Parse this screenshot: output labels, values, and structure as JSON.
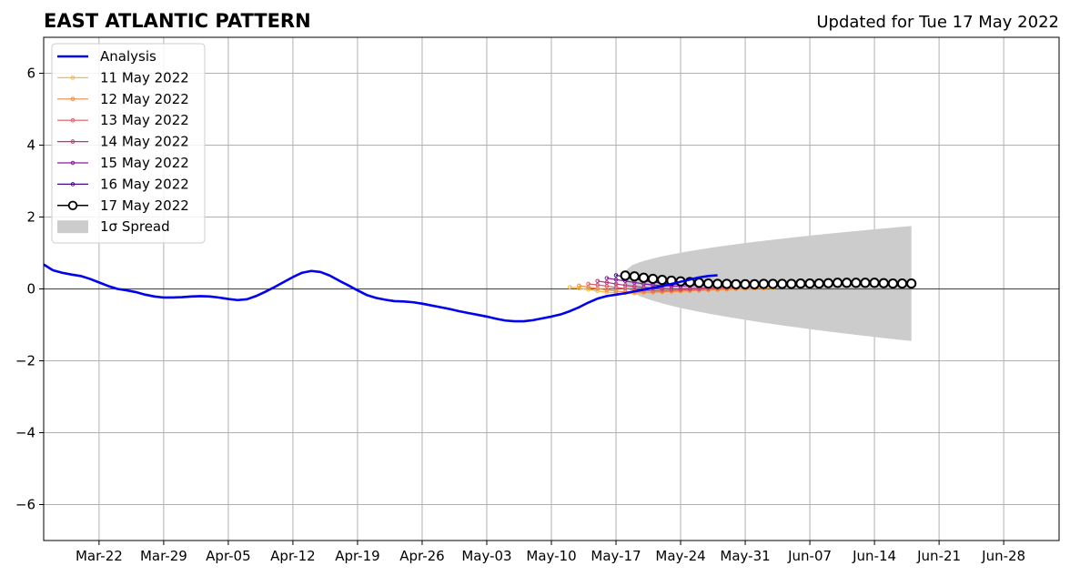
{
  "chart_data": {
    "type": "line",
    "title": "EAST ATLANTIC PATTERN",
    "subtitle": "Updated for Tue 17 May 2022",
    "xlabel": "",
    "ylabel": "",
    "xlim": [
      "2022-03-16",
      "2022-07-04"
    ],
    "ylim": [
      -7,
      7
    ],
    "grid": true,
    "legend_position": "top-left",
    "x_ticks": [
      {
        "date": "2022-03-22",
        "label": "Mar-22"
      },
      {
        "date": "2022-03-29",
        "label": "Mar-29"
      },
      {
        "date": "2022-04-05",
        "label": "Apr-05"
      },
      {
        "date": "2022-04-12",
        "label": "Apr-12"
      },
      {
        "date": "2022-04-19",
        "label": "Apr-19"
      },
      {
        "date": "2022-04-26",
        "label": "Apr-26"
      },
      {
        "date": "2022-05-03",
        "label": "May-03"
      },
      {
        "date": "2022-05-10",
        "label": "May-10"
      },
      {
        "date": "2022-05-17",
        "label": "May-17"
      },
      {
        "date": "2022-05-24",
        "label": "May-24"
      },
      {
        "date": "2022-05-31",
        "label": "May-31"
      },
      {
        "date": "2022-06-07",
        "label": "Jun-07"
      },
      {
        "date": "2022-06-14",
        "label": "Jun-14"
      },
      {
        "date": "2022-06-21",
        "label": "Jun-21"
      },
      {
        "date": "2022-06-28",
        "label": "Jun-28"
      }
    ],
    "y_ticks": [
      {
        "value": -6,
        "label": "−6"
      },
      {
        "value": -4,
        "label": "−4"
      },
      {
        "value": -2,
        "label": "−2"
      },
      {
        "value": 0,
        "label": "0"
      },
      {
        "value": 2,
        "label": "2"
      },
      {
        "value": 4,
        "label": "4"
      },
      {
        "value": 6,
        "label": "6"
      }
    ],
    "analysis": {
      "name": "Analysis",
      "color": "#0000ee",
      "start_date": "2022-03-16",
      "values": [
        0.68,
        0.52,
        0.45,
        0.4,
        0.36,
        0.28,
        0.18,
        0.08,
        0.0,
        -0.04,
        -0.09,
        -0.16,
        -0.21,
        -0.24,
        -0.24,
        -0.23,
        -0.21,
        -0.2,
        -0.21,
        -0.24,
        -0.28,
        -0.31,
        -0.29,
        -0.2,
        -0.08,
        0.05,
        0.19,
        0.33,
        0.45,
        0.5,
        0.47,
        0.37,
        0.23,
        0.1,
        -0.04,
        -0.17,
        -0.25,
        -0.3,
        -0.34,
        -0.35,
        -0.37,
        -0.41,
        -0.46,
        -0.51,
        -0.56,
        -0.62,
        -0.67,
        -0.72,
        -0.77,
        -0.83,
        -0.88,
        -0.9,
        -0.9,
        -0.87,
        -0.82,
        -0.77,
        -0.71,
        -0.62,
        -0.51,
        -0.38,
        -0.27,
        -0.2,
        -0.16,
        -0.12,
        -0.07,
        -0.02,
        0.03,
        0.08,
        0.14,
        0.2,
        0.26,
        0.32,
        0.36,
        0.38
      ]
    },
    "forecasts": [
      {
        "name": "11 May 2022",
        "color": "#fcb93e",
        "start_date": "2022-05-12",
        "values": [
          0.05,
          0.02,
          -0.02,
          -0.06,
          -0.09,
          -0.11,
          -0.12,
          -0.12,
          -0.11,
          -0.1,
          -0.09,
          -0.08,
          -0.07,
          -0.06,
          -0.05,
          -0.04,
          -0.03,
          -0.02,
          -0.01,
          0.0,
          0.01,
          0.02,
          0.02
        ]
      },
      {
        "name": "12 May 2022",
        "color": "#f4873f",
        "start_date": "2022-05-13",
        "values": [
          0.09,
          0.05,
          0.01,
          -0.03,
          -0.06,
          -0.08,
          -0.09,
          -0.09,
          -0.09,
          -0.08,
          -0.07,
          -0.06,
          -0.05,
          -0.04,
          -0.03,
          -0.02,
          -0.01,
          0.0,
          0.01,
          0.02,
          0.02
        ]
      },
      {
        "name": "13 May 2022",
        "color": "#dc5a64",
        "start_date": "2022-05-14",
        "values": [
          0.14,
          0.11,
          0.08,
          0.04,
          0.01,
          -0.02,
          -0.04,
          -0.05,
          -0.05,
          -0.04,
          -0.03,
          -0.02,
          -0.01,
          0.0,
          0.01,
          0.02,
          0.03
        ]
      },
      {
        "name": "14 May 2022",
        "color": "#b5367b",
        "start_date": "2022-05-15",
        "values": [
          0.22,
          0.18,
          0.14,
          0.1,
          0.07,
          0.04,
          0.02,
          0.01,
          0.0,
          0.0,
          0.01,
          0.02,
          0.03,
          0.04,
          0.05
        ]
      },
      {
        "name": "15 May 2022",
        "color": "#8a1aa0",
        "start_date": "2022-05-16",
        "values": [
          0.3,
          0.26,
          0.22,
          0.18,
          0.14,
          0.11,
          0.09,
          0.08,
          0.08,
          0.09,
          0.1,
          0.11,
          0.12
        ]
      },
      {
        "name": "16 May 2022",
        "color": "#4b0a8a",
        "start_date": "2022-05-17",
        "values": [
          0.38,
          0.33,
          0.28,
          0.23,
          0.19,
          0.16,
          0.14,
          0.13,
          0.13,
          0.13,
          0.14
        ]
      },
      {
        "name": "17 May 2022",
        "color": "#000000",
        "start_date": "2022-05-18",
        "open_markers": true,
        "values": [
          0.37,
          0.35,
          0.31,
          0.28,
          0.25,
          0.23,
          0.21,
          0.19,
          0.17,
          0.15,
          0.14,
          0.14,
          0.13,
          0.13,
          0.13,
          0.14,
          0.14,
          0.14,
          0.14,
          0.15,
          0.15,
          0.15,
          0.16,
          0.17,
          0.17,
          0.17,
          0.17,
          0.17,
          0.16,
          0.15,
          0.15,
          0.15
        ]
      }
    ],
    "spread": {
      "name": "1σ Spread",
      "color": "#cccccc",
      "start_date": "2022-05-18",
      "end_date": "2022-06-18",
      "upper_start": 0.5,
      "upper_end": 1.75,
      "lower_start": 0.1,
      "lower_end": -1.45
    },
    "legend": [
      {
        "label": "Analysis",
        "kind": "line",
        "color": "#0000ee"
      },
      {
        "label": "11 May 2022",
        "kind": "line-marker",
        "color": "#fcb93e"
      },
      {
        "label": "12 May 2022",
        "kind": "line-marker",
        "color": "#f4873f"
      },
      {
        "label": "13 May 2022",
        "kind": "line-marker",
        "color": "#dc5a64"
      },
      {
        "label": "14 May 2022",
        "kind": "line-marker",
        "color": "#b5367b"
      },
      {
        "label": "15 May 2022",
        "kind": "line-marker",
        "color": "#8a1aa0"
      },
      {
        "label": "16 May 2022",
        "kind": "line-marker",
        "color": "#4b0a8a"
      },
      {
        "label": "17 May 2022",
        "kind": "open-marker",
        "color": "#000000"
      },
      {
        "label": "1σ Spread",
        "kind": "patch",
        "color": "#cccccc"
      }
    ]
  }
}
